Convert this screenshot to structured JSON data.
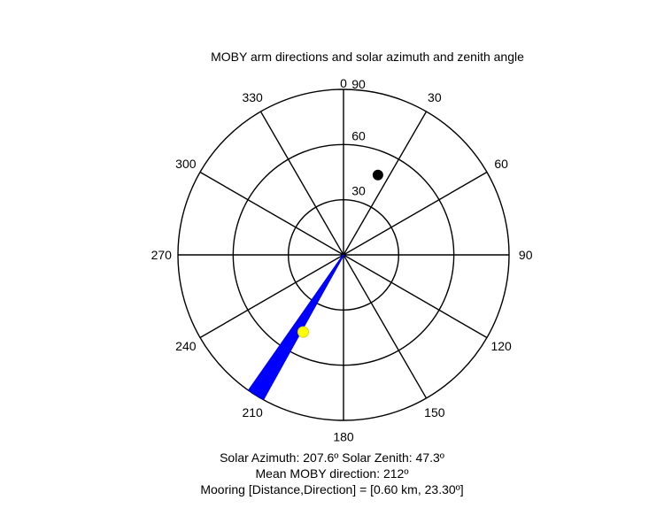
{
  "chart_data": {
    "type": "polar",
    "title": "MOBY arm directions and solar azimuth and zenith angle",
    "angle_ticks": [
      {
        "deg": 0,
        "label": "0"
      },
      {
        "deg": 30,
        "label": "30"
      },
      {
        "deg": 60,
        "label": "60"
      },
      {
        "deg": 90,
        "label": "90"
      },
      {
        "deg": 120,
        "label": "120"
      },
      {
        "deg": 150,
        "label": "150"
      },
      {
        "deg": 180,
        "label": "180"
      },
      {
        "deg": 210,
        "label": "210"
      },
      {
        "deg": 240,
        "label": "240"
      },
      {
        "deg": 270,
        "label": "270"
      },
      {
        "deg": 300,
        "label": "300"
      },
      {
        "deg": 330,
        "label": "330"
      }
    ],
    "radial_ticks": [
      {
        "value": 30,
        "label": "30"
      },
      {
        "value": 60,
        "label": "60"
      },
      {
        "value": 90,
        "label": "90"
      }
    ],
    "r_max": 90,
    "arm_directions": {
      "min_deg": 209,
      "max_deg": 215,
      "count": 40,
      "length": 90,
      "color": "#0000ff"
    },
    "sun_point": {
      "azimuth": 207.6,
      "zenith": 47.3,
      "color": "#ffff00"
    },
    "mooring_point": {
      "direction": 23.3,
      "zenith": 47.3,
      "color": "#000000"
    },
    "captions": [
      "Solar Azimuth: 207.6º   Solar Zenith: 47.3º",
      "Mean MOBY direction: 212º",
      "Mooring [Distance,Direction] = [0.60 km, 23.30º]"
    ]
  }
}
